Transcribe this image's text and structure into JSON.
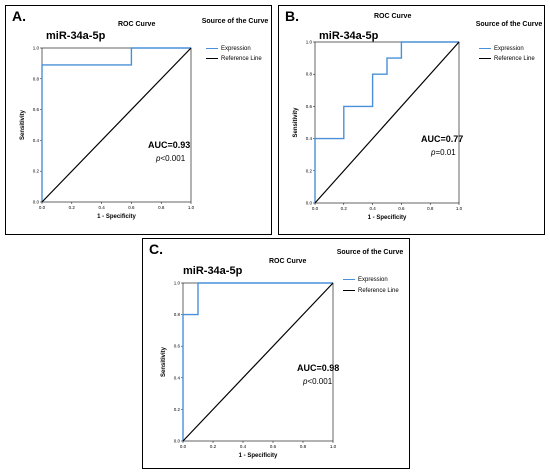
{
  "chart_data": [
    {
      "type": "line",
      "panel_label": "A.",
      "gene": "miR-34a-5p",
      "title": "ROC Curve",
      "legend_title": "Source of the Curve",
      "xlabel": "1 - Specificity",
      "ylabel": "Sensitivity",
      "xlim": [
        0,
        1
      ],
      "ylim": [
        0,
        1
      ],
      "ticks": [
        "0.0",
        "0.2",
        "0.4",
        "0.6",
        "0.8",
        "1.0"
      ],
      "auc": "AUC=0.93",
      "p_letter": "p",
      "p_rest": "<0.001",
      "series": [
        {
          "name": "Expression",
          "color": "#4a90d9",
          "x": [
            0,
            0,
            0.6,
            0.6,
            1.0
          ],
          "y": [
            0,
            0.89,
            0.89,
            1.0,
            1.0
          ]
        },
        {
          "name": "Reference Line",
          "color": "#000000",
          "x": [
            0,
            1
          ],
          "y": [
            0,
            1
          ]
        }
      ]
    },
    {
      "type": "line",
      "panel_label": "B.",
      "gene": "miR-34a-5p",
      "title": "ROC Curve",
      "legend_title": "Source of the Curve",
      "xlabel": "1 - Specificity",
      "ylabel": "Sensitivity",
      "xlim": [
        0,
        1
      ],
      "ylim": [
        0,
        1
      ],
      "ticks": [
        "0.0",
        "0.2",
        "0.4",
        "0.6",
        "0.8",
        "1.0"
      ],
      "auc": "AUC=0.77",
      "p_letter": "p",
      "p_rest": "=0.01",
      "series": [
        {
          "name": "Expression",
          "color": "#4a90d9",
          "x": [
            0,
            0,
            0.2,
            0.2,
            0.4,
            0.4,
            0.5,
            0.5,
            0.6,
            0.6,
            1.0
          ],
          "y": [
            0,
            0.4,
            0.4,
            0.6,
            0.6,
            0.8,
            0.8,
            0.9,
            0.9,
            1.0,
            1.0
          ]
        },
        {
          "name": "Reference Line",
          "color": "#000000",
          "x": [
            0,
            1
          ],
          "y": [
            0,
            1
          ]
        }
      ]
    },
    {
      "type": "line",
      "panel_label": "C.",
      "gene": "miR-34a-5p",
      "title": "ROC Curve",
      "legend_title": "Source of the Curve",
      "xlabel": "1 - Specificity",
      "ylabel": "Sensitivity",
      "xlim": [
        0,
        1
      ],
      "ylim": [
        0,
        1
      ],
      "ticks": [
        "0.0",
        "0.2",
        "0.4",
        "0.6",
        "0.8",
        "1.0"
      ],
      "auc": "AUC=0.98",
      "p_letter": "p",
      "p_rest": "<0.001",
      "series": [
        {
          "name": "Expression",
          "color": "#4a90d9",
          "x": [
            0,
            0,
            0.1,
            0.1,
            1.0
          ],
          "y": [
            0,
            0.8,
            0.8,
            1.0,
            1.0
          ]
        },
        {
          "name": "Reference Line",
          "color": "#000000",
          "x": [
            0,
            1
          ],
          "y": [
            0,
            1
          ]
        }
      ]
    }
  ]
}
